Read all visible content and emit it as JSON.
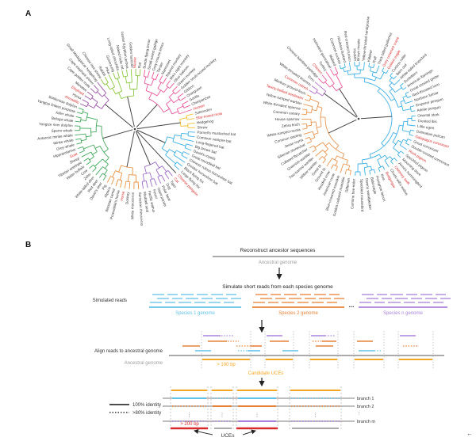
{
  "figure": {
    "panel_a_label": "A",
    "panel_b_label": "B",
    "corner_mark": "←",
    "highlight_color": "#d92b2b",
    "tree_left": {
      "clades": [
        {
          "color": "#9c56a8",
          "leaves": [
            {
              "n": "Armadillo",
              "hl": true
            },
            {
              "n": "Hyrax"
            },
            {
              "n": "Elephant",
              "hl": true
            },
            {
              "n": "Manatee"
            },
            {
              "n": "Cape golden mole"
            },
            {
              "n": "Cape elephant shrew"
            },
            {
              "n": "Small Madagascar hedgehog"
            }
          ]
        },
        {
          "color": "#8cc641",
          "leaves": [
            {
              "n": "Chinese tree shrew"
            },
            {
              "n": "Rabbit"
            },
            {
              "n": "Pika"
            },
            {
              "n": "Guinea pig"
            },
            {
              "n": "Long-tailed chinchilla"
            },
            {
              "n": "Naked mole rat"
            },
            {
              "n": "Lesser Egyptian jerboa"
            },
            {
              "n": "Golden hamster"
            },
            {
              "n": "Mouse",
              "hl": true
            },
            {
              "n": "Rat"
            }
          ]
        },
        {
          "color": "#e8589c",
          "leaves": [
            {
              "n": "Sunda flying lemur"
            },
            {
              "n": "Small-eared galago"
            },
            {
              "n": "Gray mouse lemur"
            },
            {
              "n": "Tarsier"
            },
            {
              "n": "Marmoset"
            },
            {
              "n": "Squirrel monkey"
            },
            {
              "n": "Ma's night monkey"
            },
            {
              "n": "Olive baboon"
            },
            {
              "n": "Green monkey"
            },
            {
              "n": "Golden snub-nosed monkey"
            },
            {
              "n": "Gibbon"
            },
            {
              "n": "Orangutan"
            },
            {
              "n": "Gorilla"
            },
            {
              "n": "Chimpanzee"
            },
            {
              "n": "Human",
              "hl": true
            }
          ]
        },
        {
          "color": "#f2c12e",
          "leaves": [
            {
              "n": "Solenodon"
            },
            {
              "n": "Star-nosed mole",
              "hl": true
            },
            {
              "n": "Hedgehog"
            },
            {
              "n": "Shrew"
            }
          ]
        },
        {
          "color": "#3fb0e4",
          "leaves": [
            {
              "n": "Parnell's mustached bat"
            },
            {
              "n": "Common vampire bat"
            },
            {
              "n": "Long-fingered bat"
            },
            {
              "n": "Big brown bat"
            },
            {
              "n": "David's myotis"
            },
            {
              "n": "Great roundleaf bat"
            },
            {
              "n": "Chinese rufous horseshoe bat"
            },
            {
              "n": "Greater horseshoe bat"
            },
            {
              "n": "Black flying fox"
            },
            {
              "n": "Large flying fox"
            }
          ]
        },
        {
          "color": "#e06060",
          "leaves": [
            {
              "n": "Chinese pangolin",
              "hl": true
            }
          ]
        },
        {
          "color": "#9b6bc9",
          "leaves": [
            {
              "n": "Cat",
              "hl": true
            },
            {
              "n": "Tiger"
            },
            {
              "n": "Dog"
            },
            {
              "n": "Polar bear"
            },
            {
              "n": "Giant panda"
            },
            {
              "n": "Ferret"
            },
            {
              "n": "Pacific walrus"
            },
            {
              "n": "Weddell seal"
            }
          ]
        },
        {
          "color": "#e8923f",
          "leaves": [
            {
              "n": "Sumatran rhinoceros"
            },
            {
              "n": "White rhinoceros"
            },
            {
              "n": "Donkey"
            },
            {
              "n": "Horse",
              "hl": true
            },
            {
              "n": "Przewalski's horse"
            },
            {
              "n": "Bactrian camel"
            },
            {
              "n": "Alpaca"
            },
            {
              "n": "Pig"
            }
          ]
        },
        {
          "color": "#44a85e",
          "leaves": [
            {
              "n": "David's deer"
            },
            {
              "n": "Red deer"
            },
            {
              "n": "White-tailed deer"
            },
            {
              "n": "Zebu"
            },
            {
              "n": "Cow"
            },
            {
              "n": "Water buffalo"
            },
            {
              "n": "Tibetan antelope"
            },
            {
              "n": "Sheep"
            },
            {
              "n": "Goat",
              "hl": true
            },
            {
              "n": "Hippopotamus"
            },
            {
              "n": "Grey whale"
            },
            {
              "n": "Minke whale"
            },
            {
              "n": "Antarctic minke whale"
            },
            {
              "n": "Sperm whale"
            },
            {
              "n": "Yangtze river dolphin"
            },
            {
              "n": "Beluga whale"
            },
            {
              "n": "Killer whale"
            },
            {
              "n": "Yangtze finless porpoise"
            },
            {
              "n": "Bottlenose dolphin"
            }
          ]
        }
      ]
    },
    "tree_right": {
      "clades": [
        {
          "color": "#b06ac9",
          "leaves": [
            {
              "n": "Common ostrich",
              "hl": true
            },
            {
              "n": "White-throated tinamou"
            },
            {
              "n": "Emu"
            }
          ]
        },
        {
          "color": "#e8589c",
          "leaves": [
            {
              "n": "Chinese bamboo partridge"
            },
            {
              "n": "Chicken",
              "hl": true
            },
            {
              "n": "Turkey"
            },
            {
              "n": "Helmeted guineafowl"
            },
            {
              "n": "Mallard"
            }
          ]
        },
        {
          "color": "#3fb0e4",
          "leaves": [
            {
              "n": "Common cuckoo"
            },
            {
              "n": "Houbara bustard"
            },
            {
              "n": "Red-crested turaco"
            },
            {
              "n": "Hoatzin"
            },
            {
              "n": "Brown mesite"
            },
            {
              "n": "Yellow-throated sandgrouse"
            },
            {
              "n": "Killdeer"
            },
            {
              "n": "Ruff"
            },
            {
              "n": "Thick-billed guillemot"
            },
            {
              "n": "Grey crowned crane",
              "hl": true
            },
            {
              "n": "Golden eagle",
              "hl": true
            },
            {
              "n": "Cuckoo roller"
            },
            {
              "n": "Barn owl"
            },
            {
              "n": "White-tailed tropicbird"
            },
            {
              "n": "Sunbittern"
            },
            {
              "n": "American flamingo"
            },
            {
              "n": "Great crested grebe"
            },
            {
              "n": "Red-throated loon"
            },
            {
              "n": "Northern fulmar"
            },
            {
              "n": "Emperor penguin"
            },
            {
              "n": "Adelie penguin"
            },
            {
              "n": "Oriental stork"
            },
            {
              "n": "Crested ibis"
            },
            {
              "n": "Little egret"
            },
            {
              "n": "Dalmatian pelican"
            },
            {
              "n": "Galapagos cormorant",
              "hl": true
            },
            {
              "n": "Great cormorant"
            },
            {
              "n": "Double-crested cormorant"
            },
            {
              "n": "Rock pigeon",
              "hl": true
            },
            {
              "n": "Speckled pigeon"
            },
            {
              "n": "Mourning dove"
            },
            {
              "n": "Anna's hummingbird"
            },
            {
              "n": "Chimney swift",
              "hl": true
            },
            {
              "n": "Chuck-will's-widow"
            },
            {
              "n": "Budgerigar",
              "hl": true
            },
            {
              "n": "Kea"
            },
            {
              "n": "Peregrine falcon"
            },
            {
              "n": "Bald eagle"
            },
            {
              "n": "Downy woodpecker"
            },
            {
              "n": "Speckled mousebird"
            },
            {
              "n": "Carmine bee-eater"
            }
          ]
        },
        {
          "color": "#e8954f",
          "leaves": [
            {
              "n": "Rifleman"
            },
            {
              "n": "Golden-collared manakin"
            },
            {
              "n": "Blue-crowned manakin"
            },
            {
              "n": "American crow"
            },
            {
              "n": "Hooded crow"
            },
            {
              "n": "Ground tit"
            },
            {
              "n": "Great tit"
            },
            {
              "n": "Willow warbler"
            },
            {
              "n": "Two-barred warbler"
            },
            {
              "n": "Greenish warbler"
            },
            {
              "n": "Collared flycatcher"
            },
            {
              "n": "Siberian stonechat"
            },
            {
              "n": "Javan myna"
            },
            {
              "n": "Common starling"
            },
            {
              "n": "White-rumped munia"
            },
            {
              "n": "Zebra finch"
            },
            {
              "n": "House sparrow"
            },
            {
              "n": "Common canary"
            },
            {
              "n": "White-throated sparrow"
            },
            {
              "n": "Yellow-rumped warbler"
            },
            {
              "n": "Tawny-bellied seedeater",
              "hl": true
            },
            {
              "n": "Medium ground-finch"
            }
          ]
        }
      ]
    },
    "workflow": {
      "step1_title": "Reconstruct ancestor sequences",
      "ancestral_genome_label": "Ancestral genome",
      "step2_title": "Simulate short reads from each species genome",
      "simulated_reads_label": "Simulated reads",
      "ellipsis": "...",
      "species_genomes": [
        {
          "label": "Species 1 genome",
          "color": "#62c3e8"
        },
        {
          "label": "Species 2 genome",
          "color": "#e8833a"
        },
        {
          "label": "Species n genome",
          "color": "#a983d9"
        }
      ],
      "align_label": "Align reads to ancestral genome",
      "min_len_label": "> 100 bp",
      "candidate_label": "Candidate UCEs",
      "legend": [
        {
          "style": "solid",
          "label": "100% identity"
        },
        {
          "style": "dotted",
          "label": ">80% identity"
        }
      ],
      "branch_labels": [
        "branch 1",
        "branch 2",
        "⋮",
        "branch m"
      ],
      "vdots": "⋮",
      "min_len2_label": "> 200 bp",
      "uces_label": "UCEs",
      "colors": {
        "blue": "#62c3e8",
        "orange": "#e8833a",
        "purple": "#a983d9",
        "amber": "#f5a623",
        "red": "#d92b2b",
        "gray": "#9e9e9e",
        "dark": "#333333"
      }
    }
  }
}
